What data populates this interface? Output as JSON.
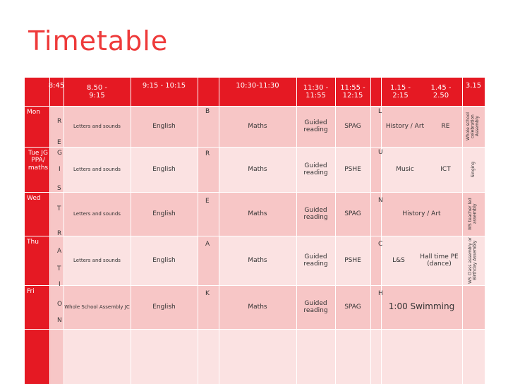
{
  "title": "Timetable",
  "headers": {
    "t1": "8:45",
    "t2a": "8.50 -",
    "t2b": "9:15",
    "t3": "9:15 - 10:15",
    "t4": "10:30-11:30",
    "t5a": "11:30 -",
    "t5b": "11:55",
    "t6a": "11:55 -",
    "t6b": "12:15",
    "t7a": "1.15 -",
    "t7b": "2:15",
    "t8a": "1.45 -",
    "t8b": "2.50",
    "t9": "3.15"
  },
  "days": {
    "mon": "Mon",
    "tue": "Tue JG PPA/ maths",
    "wed": "Wed",
    "thu": "Thu",
    "fri": "Fri"
  },
  "registration_letters": [
    "R",
    "E",
    "G",
    "I",
    "S",
    "T",
    "R",
    "A",
    "T",
    "I",
    "O",
    "N"
  ],
  "break_letters": [
    "B",
    "R",
    "E",
    "A",
    "K"
  ],
  "lunch_letters": [
    "L",
    "U",
    "N",
    "C",
    "H"
  ],
  "early": {
    "mon": "Letters and sounds",
    "tue": "Letters and sounds",
    "wed": "Letters and sounds",
    "thu": "Letters and sounds",
    "fri": "Whole School Assembly JC"
  },
  "english": {
    "mon": "English",
    "tue": "English",
    "wed": "English",
    "thu": "English",
    "fri": "English"
  },
  "maths": {
    "mon": "Maths",
    "tue": "Maths",
    "wed": "Maths",
    "thu": "Maths",
    "fri": "Maths"
  },
  "guided": {
    "mon": "Guided reading",
    "tue": "Guided reading",
    "wed": "Guided reading",
    "thu": "Guided reading",
    "fri": "Guided reading"
  },
  "noon": {
    "mon": "SPAG",
    "tue": "PSHE",
    "wed": "SPAG",
    "thu": "PSHE",
    "fri": "SPAG"
  },
  "afternoon": {
    "mon_a": "History / Art",
    "mon_b": "RE",
    "tue_a": "Music",
    "tue_b": "ICT",
    "wed": "History / Art",
    "thu_a": "L&S",
    "thu_b": "Hall time PE (dance)",
    "fri": "1:00 Swimming"
  },
  "late": {
    "mon": "Whole school celebration Assembly",
    "tue": "Singing",
    "wed": "WS teacher led assembly",
    "thu": "WS Class assembly or Birthday Assembly",
    "fri": ""
  }
}
